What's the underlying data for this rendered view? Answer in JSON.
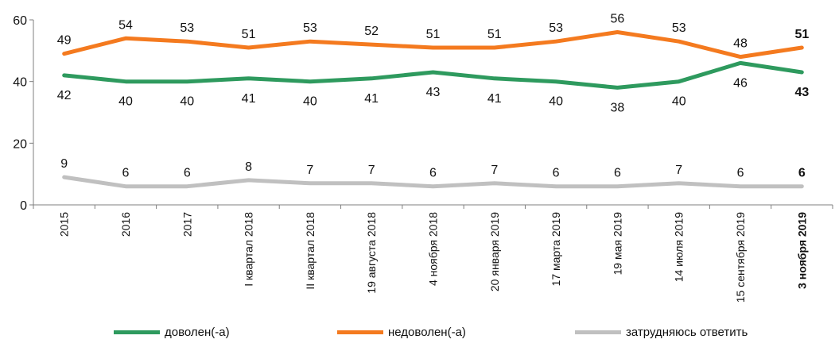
{
  "chart_data": {
    "type": "line",
    "categories": [
      "2015",
      "2016",
      "2017",
      "I квартал 2018",
      "II квартал 2018",
      "19 августа 2018",
      "4 ноября 2018",
      "20 января 2019",
      "17 марта 2019",
      "19 мая 2019",
      "14 июля 2019",
      "15 сентября 2019",
      "3 ноября 2019"
    ],
    "bold_last_category": true,
    "ylim": [
      0,
      60
    ],
    "yticks": [
      "0",
      "20",
      "40",
      "60"
    ],
    "series": [
      {
        "name": "доволен(-а)",
        "color": "#2e9a5e",
        "values": [
          42,
          40,
          40,
          41,
          40,
          41,
          43,
          41,
          40,
          38,
          40,
          46,
          43
        ],
        "labels": [
          "42",
          "40",
          "40",
          "41",
          "40",
          "41",
          "43",
          "41",
          "40",
          "38",
          "40",
          "46",
          "43"
        ],
        "label_position": "below"
      },
      {
        "name": "недоволен(-а)",
        "color": "#f47a1f",
        "values": [
          49,
          54,
          53,
          51,
          53,
          52,
          51,
          51,
          53,
          56,
          53,
          48,
          51
        ],
        "labels": [
          "49",
          "54",
          "53",
          "51",
          "53",
          "52",
          "51",
          "51",
          "53",
          "56",
          "53",
          "48",
          "51"
        ],
        "label_position": "above"
      },
      {
        "name": "затрудняюсь ответить",
        "color": "#c0c0c0",
        "values": [
          9,
          6,
          6,
          8,
          7,
          7,
          6,
          7,
          6,
          6,
          7,
          6,
          6
        ],
        "labels": [
          "9",
          "6",
          "6",
          "8",
          "7",
          "7",
          "6",
          "7",
          "6",
          "6",
          "7",
          "6",
          "6"
        ],
        "label_position": "above"
      }
    ],
    "legend_position": "bottom",
    "grid": false
  }
}
